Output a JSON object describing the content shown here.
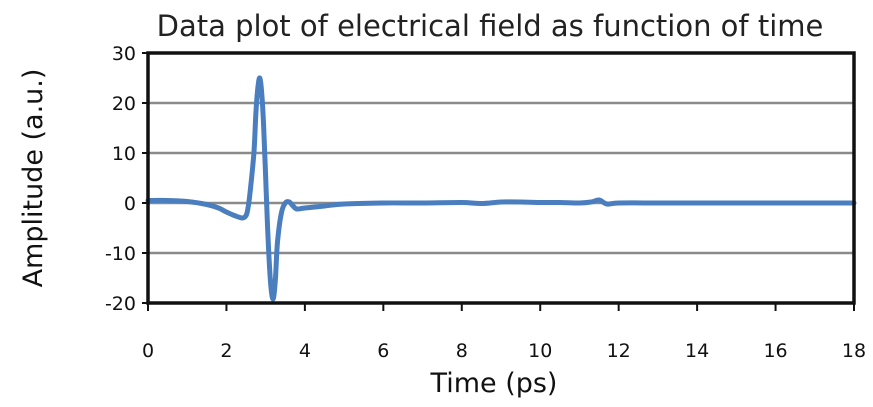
{
  "chart_data": {
    "type": "line",
    "title": "Data plot of electrical field as function of time",
    "xlabel": "Time (ps)",
    "ylabel": "Amplitude (a.u.)",
    "xlim": [
      0,
      18
    ],
    "ylim": [
      -20,
      30
    ],
    "xticks": [
      "0",
      "2",
      "4",
      "6",
      "8",
      "10",
      "12",
      "14",
      "16",
      "18"
    ],
    "yticks": [
      "30",
      "20",
      "10",
      "0",
      "-10",
      "-20"
    ],
    "grid": "horizontal",
    "series": [
      {
        "color": "#4a7ebf",
        "x": [
          0,
          0.5,
          1.0,
          1.5,
          1.8,
          2.0,
          2.2,
          2.4,
          2.5,
          2.55,
          2.6,
          2.7,
          2.75,
          2.8,
          2.85,
          2.9,
          2.95,
          3.0,
          3.05,
          3.1,
          3.15,
          3.2,
          3.25,
          3.3,
          3.4,
          3.5,
          3.6,
          3.7,
          3.8,
          4.0,
          4.5,
          5.0,
          6.0,
          7.0,
          8.0,
          8.5,
          9.0,
          9.5,
          10.0,
          10.5,
          11.0,
          11.3,
          11.5,
          11.7,
          12.0,
          13.0,
          14.0,
          15.0,
          16.0,
          17.0,
          18.0
        ],
        "y": [
          0.5,
          0.5,
          0.3,
          -0.3,
          -1.0,
          -1.8,
          -2.5,
          -3.0,
          -2.5,
          -1.0,
          2.0,
          10.0,
          18.0,
          23.0,
          25.0,
          22.0,
          15.0,
          5.0,
          -5.0,
          -13.0,
          -18.0,
          -19.0,
          -15.0,
          -8.0,
          -2.0,
          0.0,
          0.2,
          -0.6,
          -1.2,
          -1.0,
          -0.6,
          -0.2,
          0.0,
          0.0,
          0.1,
          -0.1,
          0.2,
          0.2,
          0.1,
          0.1,
          0.0,
          0.2,
          0.6,
          -0.2,
          0.0,
          0.0,
          0.0,
          0.0,
          0.0,
          0.0,
          0.0
        ]
      }
    ]
  }
}
